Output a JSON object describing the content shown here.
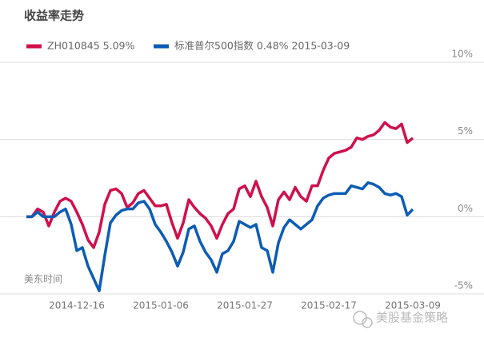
{
  "chart_data": {
    "type": "line",
    "title": "收益率走势",
    "categories": [
      null,
      null,
      null,
      null,
      null,
      null,
      null,
      null,
      null,
      "2014-12-16",
      null,
      null,
      null,
      null,
      null,
      null,
      null,
      null,
      null,
      null,
      null,
      null,
      null,
      null,
      "2015-01-06",
      null,
      null,
      null,
      null,
      null,
      null,
      null,
      null,
      null,
      null,
      null,
      null,
      null,
      null,
      "2015-01-27",
      null,
      null,
      null,
      null,
      null,
      null,
      null,
      null,
      null,
      null,
      null,
      null,
      null,
      null,
      "2015-02-17",
      null,
      null,
      null,
      null,
      null,
      null,
      null,
      null,
      null,
      null,
      null,
      null,
      null,
      null,
      "2015-03-09"
    ],
    "series": [
      {
        "name": "ZH010845 5.09%",
        "color": "#d0104c",
        "values": [
          0,
          0,
          0.5,
          0.3,
          -0.6,
          0.3,
          1.0,
          1.2,
          1.0,
          0.3,
          -0.5,
          -1.5,
          -2.0,
          -1.0,
          0.8,
          1.7,
          1.8,
          1.5,
          0.6,
          0.9,
          1.5,
          1.7,
          1.2,
          0.7,
          0.7,
          0.8,
          -0.4,
          -1.4,
          -0.4,
          1.1,
          0.6,
          0.2,
          -0.1,
          -0.6,
          -1.4,
          -0.5,
          0.2,
          0.5,
          1.8,
          2.0,
          1.3,
          2.3,
          1.3,
          0.6,
          -0.6,
          1.1,
          1.6,
          1.1,
          1.9,
          1.3,
          1.0,
          2.0,
          2.0,
          3.0,
          3.8,
          4.1,
          4.2,
          4.3,
          4.5,
          5.1,
          5.0,
          5.2,
          5.3,
          5.6,
          6.1,
          5.8,
          5.7,
          6.0,
          4.8,
          5.09
        ]
      },
      {
        "name": "标准普尔500指数 0.48% 2015-03-09",
        "color": "#0d5cb6",
        "values": [
          0,
          0,
          0.3,
          0,
          0,
          0,
          0.3,
          0.5,
          -0.5,
          -2.2,
          -2.0,
          -3.2,
          -4.0,
          -4.8,
          -2.5,
          -0.4,
          0.1,
          0.4,
          0.5,
          0.5,
          0.9,
          1.0,
          0.5,
          -0.5,
          -1.0,
          -1.6,
          -2.3,
          -3.2,
          -2.3,
          -0.8,
          -0.6,
          -1.6,
          -2.3,
          -2.8,
          -3.6,
          -2.4,
          -2.2,
          -1.6,
          -0.3,
          -0.5,
          -0.7,
          -0.5,
          -2.0,
          -2.2,
          -3.6,
          -1.7,
          -0.7,
          -0.2,
          -0.5,
          -0.8,
          -0.5,
          -0.2,
          0.7,
          1.2,
          1.4,
          1.5,
          1.5,
          1.5,
          2.0,
          1.9,
          1.8,
          2.2,
          2.1,
          1.9,
          1.5,
          1.4,
          1.5,
          1.3,
          0.1,
          0.48
        ]
      }
    ],
    "ylim": [
      -5,
      10
    ],
    "yticks": [
      {
        "value": -5,
        "label": "-5%"
      },
      {
        "value": 0,
        "label": "0%"
      },
      {
        "value": 5,
        "label": "5%"
      },
      {
        "value": 10,
        "label": "10%"
      }
    ],
    "grid": true,
    "note": "美东时间",
    "watermark": "美股基金策略"
  }
}
